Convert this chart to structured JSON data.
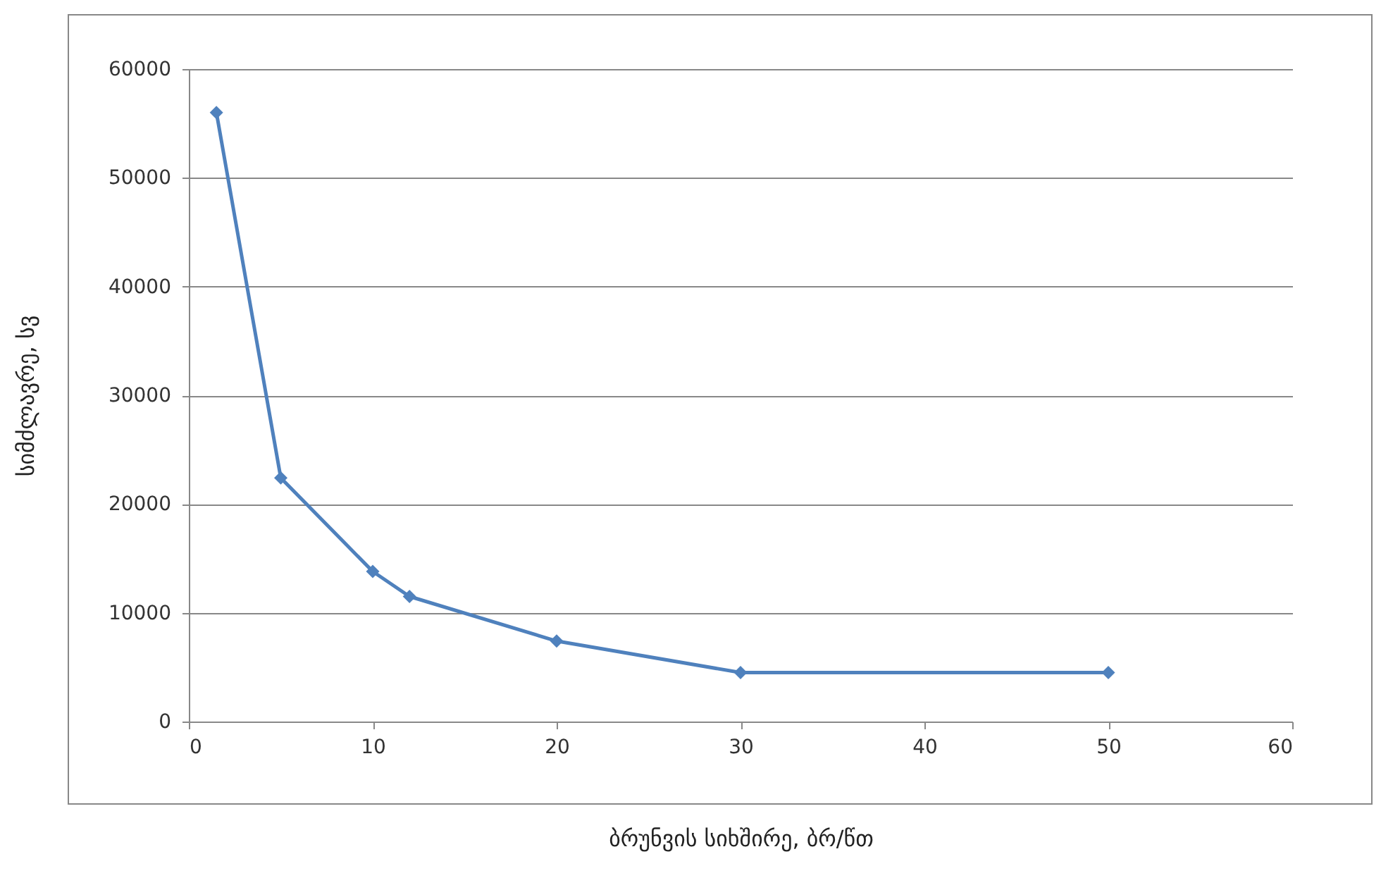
{
  "chart_data": {
    "type": "line",
    "xlabel": "ბრუნვის სიხშირე, ბრ/წთ",
    "ylabel": "სიმძლავრე, სვ",
    "x": [
      1.5,
      5,
      10,
      12,
      20,
      30,
      50
    ],
    "series": [
      {
        "color": "#4f81bd",
        "values": [
          56000,
          22400,
          13800,
          11500,
          7400,
          4500,
          4500
        ]
      }
    ],
    "xlim": [
      0,
      60
    ],
    "xticks": [
      0,
      10,
      20,
      30,
      40,
      50,
      60
    ],
    "ylim": [
      0,
      60000
    ],
    "yticks": [
      0,
      10000,
      20000,
      30000,
      40000,
      50000,
      60000
    ],
    "grid": "y",
    "marker": "diamond"
  }
}
